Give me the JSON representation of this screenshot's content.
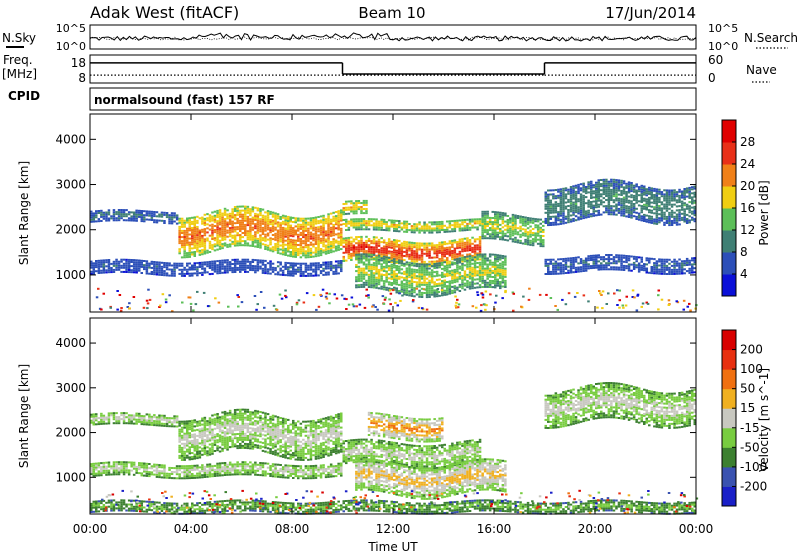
{
  "header": {
    "station": "Adak West (fitACF)",
    "beam": "Beam 10",
    "date": "17/Jun/2014"
  },
  "noise_panel": {
    "left_label": "N.Sky",
    "right_label": "N.Search",
    "ticks_left": [
      "10^5",
      "10^0"
    ],
    "ticks_right": [
      "10^5",
      "10^0"
    ]
  },
  "freq_panel": {
    "left_label_1": "Freq.",
    "left_label_2": "[MHz]",
    "right_label": "Nave",
    "ticks_left": [
      "18",
      "8"
    ],
    "ticks_right": [
      "60",
      "0"
    ],
    "segments": [
      {
        "start_hour": 0,
        "end_hour": 10,
        "freq_level": 0.72,
        "nave_level": 0.28
      },
      {
        "start_hour": 10,
        "end_hour": 18,
        "freq_level": 0.32,
        "nave_level": 0.28
      },
      {
        "start_hour": 18,
        "end_hour": 24,
        "freq_level": 0.72,
        "nave_level": 0.28
      }
    ]
  },
  "cpid_panel": {
    "label": "CPID",
    "text": "normalsound (fast) 157 RF"
  },
  "chart_data": [
    {
      "type": "heatmap",
      "quantity": "Power",
      "ylabel": "Slant Range [km]",
      "ylim": [
        180,
        4560
      ],
      "yticks": [
        1000,
        2000,
        3000,
        4000
      ],
      "colorbar_label": "Power [dB]",
      "colorbar_ticks": [
        "4",
        "8",
        "12",
        "16",
        "20",
        "24",
        "28"
      ],
      "colorbar_colors": [
        "#0b10d8",
        "#2c4fb8",
        "#3f7f74",
        "#5cbf58",
        "#f0ce12",
        "#f08018",
        "#e83018",
        "#e00000"
      ],
      "bands": [
        {
          "t0": 0.0,
          "t1": 3.5,
          "r0": 2150,
          "r1": 2400,
          "level": 0.25
        },
        {
          "t0": 3.5,
          "t1": 10.0,
          "r0": 1500,
          "r1": 2400,
          "level": 0.78
        },
        {
          "t0": 10.0,
          "t1": 15.5,
          "r0": 1250,
          "r1": 1750,
          "level": 0.92
        },
        {
          "t0": 10.0,
          "t1": 15.5,
          "r0": 1950,
          "r1": 2200,
          "level": 0.62
        },
        {
          "t0": 15.5,
          "t1": 18.0,
          "r0": 1700,
          "r1": 2300,
          "level": 0.55
        },
        {
          "t0": 10.5,
          "t1": 16.5,
          "r0": 600,
          "r1": 1350,
          "level": 0.55
        },
        {
          "t0": 0.0,
          "t1": 10.0,
          "r0": 1000,
          "r1": 1300,
          "level": 0.18
        },
        {
          "t0": 18.0,
          "t1": 24.0,
          "r0": 1050,
          "r1": 1400,
          "level": 0.2
        },
        {
          "t0": 18.0,
          "t1": 24.0,
          "r0": 2200,
          "r1": 3000,
          "level": 0.32
        },
        {
          "t0": 10.0,
          "t1": 11.0,
          "r0": 2300,
          "r1": 2600,
          "level": 0.65
        }
      ]
    },
    {
      "type": "heatmap",
      "quantity": "Velocity",
      "ylabel": "Slant Range [km]",
      "ylim": [
        180,
        4560
      ],
      "yticks": [
        1000,
        2000,
        3000,
        4000
      ],
      "colorbar_label": "Velocity [m s^-1]",
      "colorbar_ticks": [
        "200",
        "100",
        "50",
        "15",
        "-15",
        "-50",
        "-100",
        "-200"
      ],
      "colorbar_colors": [
        "#1a20c8",
        "#3a52b0",
        "#3c8030",
        "#78cc40",
        "#c8c8c0",
        "#f0b020",
        "#f07010",
        "#e83010",
        "#d80000"
      ],
      "bands": [
        {
          "t0": 0.0,
          "t1": 3.5,
          "r0": 2150,
          "r1": 2400,
          "level": 0.5
        },
        {
          "t0": 3.5,
          "t1": 10.0,
          "r0": 1500,
          "r1": 2400,
          "level": 0.5
        },
        {
          "t0": 10.0,
          "t1": 15.5,
          "r0": 1250,
          "r1": 1750,
          "level": 0.5
        },
        {
          "t0": 11.0,
          "t1": 14.0,
          "r0": 1850,
          "r1": 2350,
          "level": 0.72
        },
        {
          "t0": 10.5,
          "t1": 16.5,
          "r0": 600,
          "r1": 1300,
          "level": 0.62
        },
        {
          "t0": 18.0,
          "t1": 24.0,
          "r0": 2200,
          "r1": 3000,
          "level": 0.5
        },
        {
          "t0": 0.0,
          "t1": 10.0,
          "r0": 1000,
          "r1": 1300,
          "level": 0.5
        },
        {
          "t0": 0.0,
          "t1": 24.0,
          "r0": 200,
          "r1": 450,
          "level": 0.35
        }
      ]
    }
  ],
  "time_axis": {
    "xlabel": "Time UT",
    "tick_labels": [
      "00:00",
      "04:00",
      "08:00",
      "12:00",
      "16:00",
      "20:00",
      "00:00"
    ],
    "hours": [
      0,
      4,
      8,
      12,
      16,
      20,
      24
    ]
  }
}
